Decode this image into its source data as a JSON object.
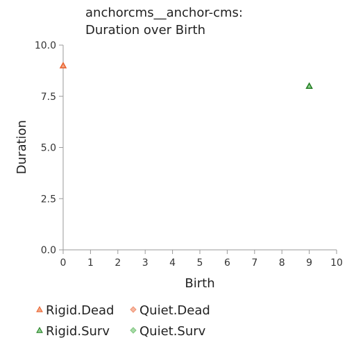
{
  "chart_data": {
    "type": "scatter",
    "title_lines": [
      "anchorcms__anchor-cms:",
      "Duration over Birth"
    ],
    "xlabel": "Birth",
    "ylabel": "Duration",
    "xlim": [
      0,
      10
    ],
    "ylim": [
      0,
      10
    ],
    "x_ticks": [
      {
        "value": 0,
        "label": "0"
      },
      {
        "value": 1,
        "label": "1"
      },
      {
        "value": 2,
        "label": "2"
      },
      {
        "value": 3,
        "label": "3"
      },
      {
        "value": 4,
        "label": "4"
      },
      {
        "value": 5,
        "label": "5"
      },
      {
        "value": 6,
        "label": "6"
      },
      {
        "value": 7,
        "label": "7"
      },
      {
        "value": 8,
        "label": "8"
      },
      {
        "value": 9,
        "label": "9"
      },
      {
        "value": 10,
        "label": "10"
      }
    ],
    "y_ticks": [
      {
        "value": 0,
        "label": "0.0"
      },
      {
        "value": 2.5,
        "label": "2.5"
      },
      {
        "value": 5,
        "label": "5.0"
      },
      {
        "value": 7.5,
        "label": "7.5"
      },
      {
        "value": 10,
        "label": "10.0"
      }
    ],
    "grid": false,
    "legend_position": "bottom",
    "series": [
      {
        "name": "Rigid.Dead",
        "marker": "triangle",
        "color": "#f4a582",
        "stroke": "#e8602c",
        "points": [
          {
            "x": 0,
            "y": 9
          }
        ]
      },
      {
        "name": "Quiet.Dead",
        "marker": "diamond",
        "color": "#f6b7a0",
        "stroke": "#f09070",
        "points": []
      },
      {
        "name": "Rigid.Surv",
        "marker": "triangle",
        "color": "#8fd18f",
        "stroke": "#1f7a1f",
        "points": [
          {
            "x": 9,
            "y": 8
          }
        ]
      },
      {
        "name": "Quiet.Surv",
        "marker": "diamond",
        "color": "#a8dba8",
        "stroke": "#7cc47c",
        "points": []
      }
    ]
  }
}
